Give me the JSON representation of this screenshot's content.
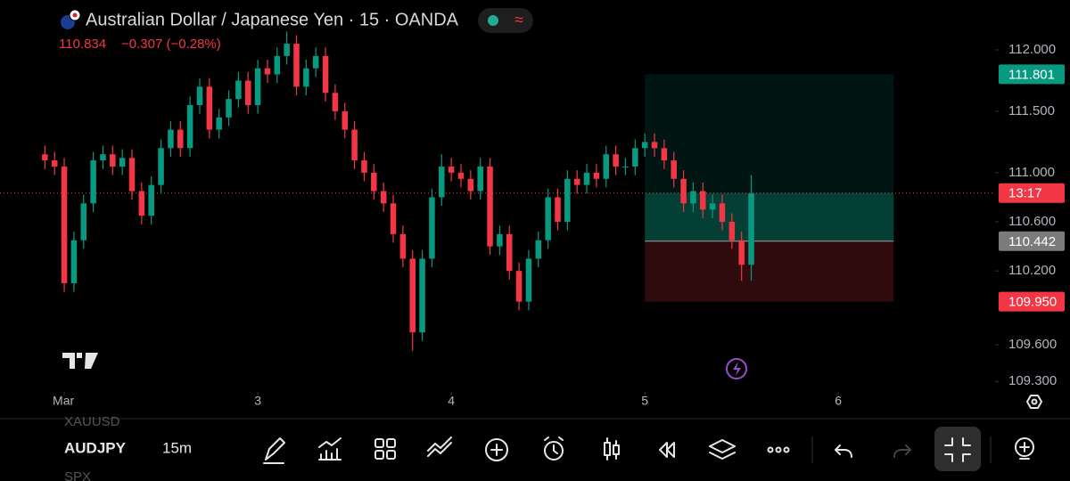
{
  "header": {
    "title": "Australian Dollar / Japanese Yen · 15 · OANDA",
    "change": "−0.307 (−0.28%)"
  },
  "chart_data": {
    "type": "candlestick",
    "x": [
      1.9,
      1.95,
      2.0,
      2.05,
      2.1,
      2.15,
      2.2,
      2.25,
      2.3,
      2.35,
      2.4,
      2.45,
      2.5,
      2.55,
      2.6,
      2.65,
      2.7,
      2.75,
      2.8,
      2.85,
      2.9,
      2.95,
      3.0,
      3.05,
      3.1,
      3.15,
      3.2,
      3.25,
      3.3,
      3.35,
      3.4,
      3.45,
      3.5,
      3.55,
      3.6,
      3.65,
      3.7,
      3.75,
      3.8,
      3.85,
      3.9,
      3.95,
      4.0,
      4.05,
      4.1,
      4.15,
      4.2,
      4.25,
      4.3,
      4.35,
      4.4,
      4.45,
      4.5,
      4.55,
      4.6,
      4.65,
      4.7,
      4.75,
      4.8,
      4.85,
      4.9,
      4.95,
      5.0,
      5.05,
      5.1,
      5.15,
      5.2,
      5.25,
      5.3,
      5.35,
      5.4,
      5.45,
      5.5,
      5.55
    ],
    "open": [
      111.15,
      111.1,
      111.05,
      110.1,
      110.45,
      110.75,
      111.1,
      111.15,
      111.05,
      111.12,
      110.85,
      110.65,
      110.9,
      111.2,
      111.35,
      111.2,
      111.55,
      111.7,
      111.35,
      111.45,
      111.6,
      111.75,
      111.55,
      111.85,
      111.8,
      111.95,
      112.05,
      111.7,
      111.85,
      111.95,
      111.65,
      111.5,
      111.35,
      111.1,
      111.0,
      110.85,
      110.75,
      110.5,
      110.3,
      109.7,
      110.3,
      110.8,
      111.05,
      111.0,
      110.95,
      110.85,
      111.05,
      110.4,
      110.5,
      110.2,
      109.95,
      110.3,
      110.45,
      110.8,
      110.6,
      110.95,
      110.9,
      111.0,
      110.95,
      111.15,
      111.05,
      111.05,
      111.2,
      111.25,
      111.2,
      111.1,
      110.95,
      110.75,
      110.85,
      110.7,
      110.75,
      110.6,
      110.45,
      110.25
    ],
    "high": [
      111.22,
      111.17,
      111.12,
      110.52,
      110.82,
      111.17,
      111.22,
      111.22,
      111.19,
      111.19,
      110.92,
      110.97,
      111.27,
      111.42,
      111.42,
      111.62,
      111.77,
      111.77,
      111.52,
      111.67,
      111.82,
      111.82,
      111.92,
      111.92,
      112.02,
      112.15,
      112.12,
      111.92,
      112.02,
      112.02,
      111.72,
      111.57,
      111.42,
      111.17,
      111.07,
      110.92,
      110.82,
      110.57,
      110.37,
      110.37,
      110.87,
      111.15,
      111.12,
      111.07,
      111.02,
      111.12,
      111.12,
      110.57,
      110.57,
      110.27,
      110.37,
      110.52,
      110.87,
      110.87,
      111.02,
      111.02,
      111.07,
      111.07,
      111.22,
      111.22,
      111.12,
      111.27,
      111.32,
      111.32,
      111.27,
      111.17,
      111.02,
      110.92,
      110.92,
      110.82,
      110.82,
      110.67,
      110.52,
      110.98
    ],
    "low": [
      111.03,
      110.98,
      110.03,
      110.03,
      110.38,
      110.68,
      111.03,
      110.98,
      110.98,
      110.78,
      110.58,
      110.58,
      110.83,
      111.13,
      111.13,
      111.13,
      111.48,
      111.28,
      111.28,
      111.38,
      111.53,
      111.48,
      111.48,
      111.73,
      111.73,
      111.88,
      111.63,
      111.63,
      111.78,
      111.58,
      111.43,
      111.28,
      111.03,
      110.93,
      110.78,
      110.68,
      110.43,
      110.23,
      109.55,
      109.63,
      110.23,
      110.73,
      110.93,
      110.88,
      110.78,
      110.78,
      110.33,
      110.33,
      110.13,
      109.88,
      109.88,
      110.23,
      110.38,
      110.53,
      110.53,
      110.83,
      110.83,
      110.88,
      110.88,
      110.98,
      110.98,
      110.98,
      111.13,
      111.13,
      111.03,
      110.88,
      110.68,
      110.68,
      110.63,
      110.63,
      110.53,
      110.38,
      110.12,
      110.12
    ],
    "close": [
      111.1,
      111.05,
      110.1,
      110.45,
      110.75,
      111.1,
      111.15,
      111.05,
      111.12,
      110.85,
      110.65,
      110.9,
      111.2,
      111.35,
      111.2,
      111.55,
      111.7,
      111.35,
      111.45,
      111.6,
      111.75,
      111.55,
      111.85,
      111.8,
      111.95,
      112.05,
      111.7,
      111.85,
      111.95,
      111.65,
      111.5,
      111.35,
      111.1,
      111.0,
      110.85,
      110.75,
      110.5,
      110.3,
      109.7,
      110.3,
      110.8,
      111.05,
      111.0,
      110.95,
      110.85,
      111.05,
      110.4,
      110.5,
      110.2,
      109.95,
      110.3,
      110.45,
      110.8,
      110.6,
      110.95,
      110.9,
      111.0,
      110.95,
      111.15,
      111.05,
      111.05,
      111.2,
      111.25,
      111.2,
      111.1,
      110.95,
      110.75,
      110.85,
      110.7,
      110.75,
      110.6,
      110.45,
      110.25,
      110.83
    ],
    "up_color": "#089981",
    "down_color": "#f23645",
    "xlim": [
      1.668,
      6.81
    ],
    "xticks": [
      {
        "value": 2,
        "label": "Mar"
      },
      3,
      4,
      5,
      6
    ],
    "ylim": [
      109.215,
      112.406
    ],
    "yticks": [
      {
        "value": 112,
        "label": "112.000"
      },
      {
        "value": 111.5,
        "label": "111.500"
      },
      {
        "value": 111,
        "label": "111.000"
      },
      {
        "value": 110.6,
        "label": "110.600"
      },
      {
        "value": 110.2,
        "label": "110.200"
      },
      {
        "value": 109.6,
        "label": "109.600"
      },
      {
        "value": 109.3,
        "label": "109.300"
      }
    ],
    "current_price": 110.834,
    "countdown": "13:17",
    "position": {
      "target": 111.801,
      "entry": 110.442,
      "stop": {
        "value": 109.95,
        "label": "109.950"
      },
      "x_range": [
        5.0,
        6.286
      ]
    }
  },
  "toolbar": {
    "symbols": [
      "XAUUSD",
      "AUDJPY",
      "SPX"
    ],
    "interval": "15m"
  }
}
